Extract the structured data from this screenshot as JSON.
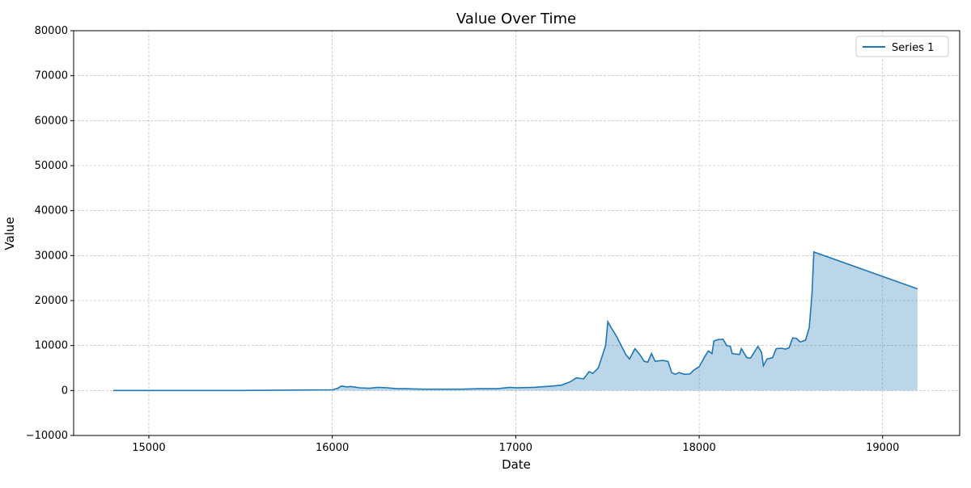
{
  "chart_data": {
    "type": "line",
    "title": "Value Over Time",
    "x_label": "Date",
    "y_label": "Value",
    "x": [
      14806,
      15000,
      15500,
      15800,
      16000,
      16030,
      16050,
      16080,
      16100,
      16150,
      16200,
      16250,
      16300,
      16350,
      16400,
      16500,
      16600,
      16700,
      16800,
      16900,
      16970,
      17000,
      17100,
      17200,
      17250,
      17300,
      17330,
      17370,
      17400,
      17420,
      17450,
      17470,
      17490,
      17502,
      17520,
      17550,
      17600,
      17620,
      17650,
      17680,
      17700,
      17720,
      17740,
      17760,
      17800,
      17830,
      17850,
      17870,
      17890,
      17920,
      17950,
      17970,
      18000,
      18030,
      18050,
      18070,
      18080,
      18100,
      18130,
      18150,
      18170,
      18180,
      18220,
      18230,
      18260,
      18280,
      18300,
      18320,
      18340,
      18350,
      18370,
      18400,
      18420,
      18450,
      18470,
      18490,
      18510,
      18530,
      18550,
      18580,
      18600,
      18615,
      18625,
      19190
    ],
    "series": [
      {
        "name": "Series 1",
        "color": "#1f77b4",
        "fill": true,
        "values": [
          0,
          0,
          0,
          100,
          150,
          500,
          1000,
          800,
          900,
          600,
          500,
          700,
          600,
          400,
          400,
          300,
          300,
          300,
          400,
          400,
          700,
          600,
          700,
          1000,
          1200,
          2000,
          2800,
          2600,
          4200,
          3800,
          5000,
          7500,
          10000,
          15300,
          14000,
          12000,
          8000,
          7000,
          9300,
          7800,
          6500,
          6300,
          8200,
          6500,
          6700,
          6500,
          4000,
          3600,
          4000,
          3600,
          3700,
          4500,
          5300,
          7500,
          8800,
          8200,
          11000,
          11300,
          11400,
          10000,
          9800,
          8200,
          8000,
          9300,
          7300,
          7200,
          8500,
          9800,
          8500,
          5500,
          7000,
          7300,
          9300,
          9400,
          9200,
          9500,
          11700,
          11600,
          10800,
          11200,
          14000,
          21500,
          30800,
          22600
        ]
      }
    ],
    "xlim": [
      14590,
      19420
    ],
    "xticks": [
      15000,
      16000,
      17000,
      18000,
      19000
    ],
    "ylim": [
      -10000,
      80000
    ],
    "yticks": [
      {
        "value": -10000,
        "label": "−10000"
      },
      0,
      10000,
      20000,
      30000,
      40000,
      50000,
      60000,
      70000,
      80000
    ],
    "grid": true,
    "legend": "upper right"
  }
}
